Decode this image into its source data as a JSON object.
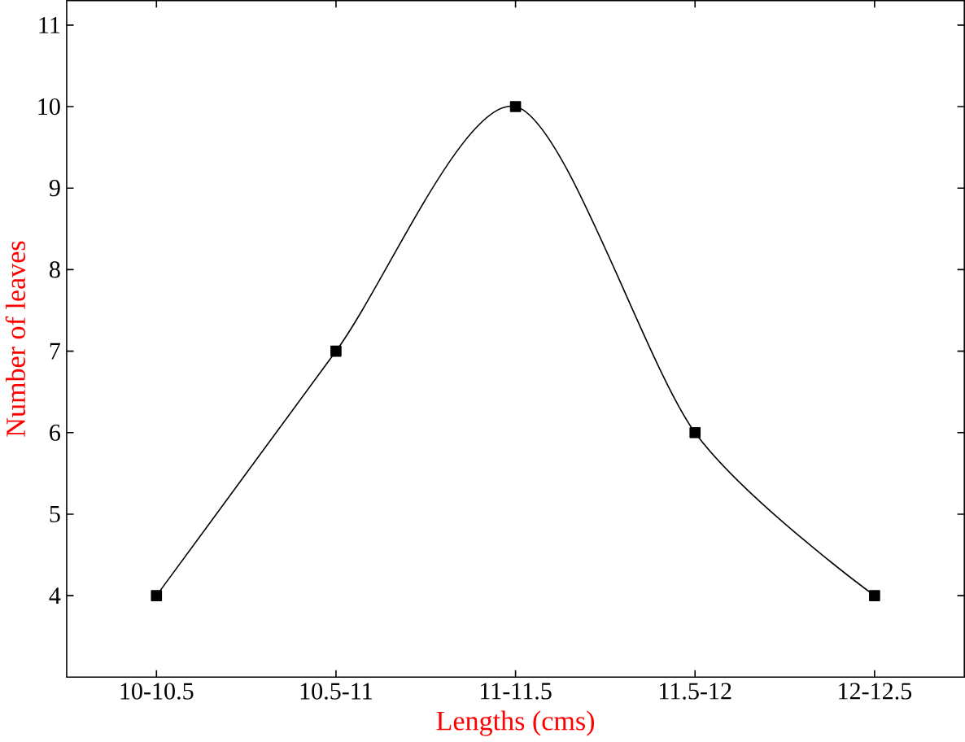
{
  "chart_data": {
    "type": "line",
    "xlabel": "Lengths (cms)",
    "ylabel": "Number of leaves",
    "categories": [
      "10-10.5",
      "10.5-11",
      "11-11.5",
      "11.5-12",
      "12-12.5"
    ],
    "values": [
      4,
      7,
      10,
      6,
      4
    ],
    "color": "#000000",
    "marker": "square",
    "line_style": "solid",
    "grid": false,
    "ylim": [
      3,
      11.3
    ],
    "yticks": [
      4,
      5,
      6,
      7,
      8,
      9,
      10,
      11
    ]
  }
}
